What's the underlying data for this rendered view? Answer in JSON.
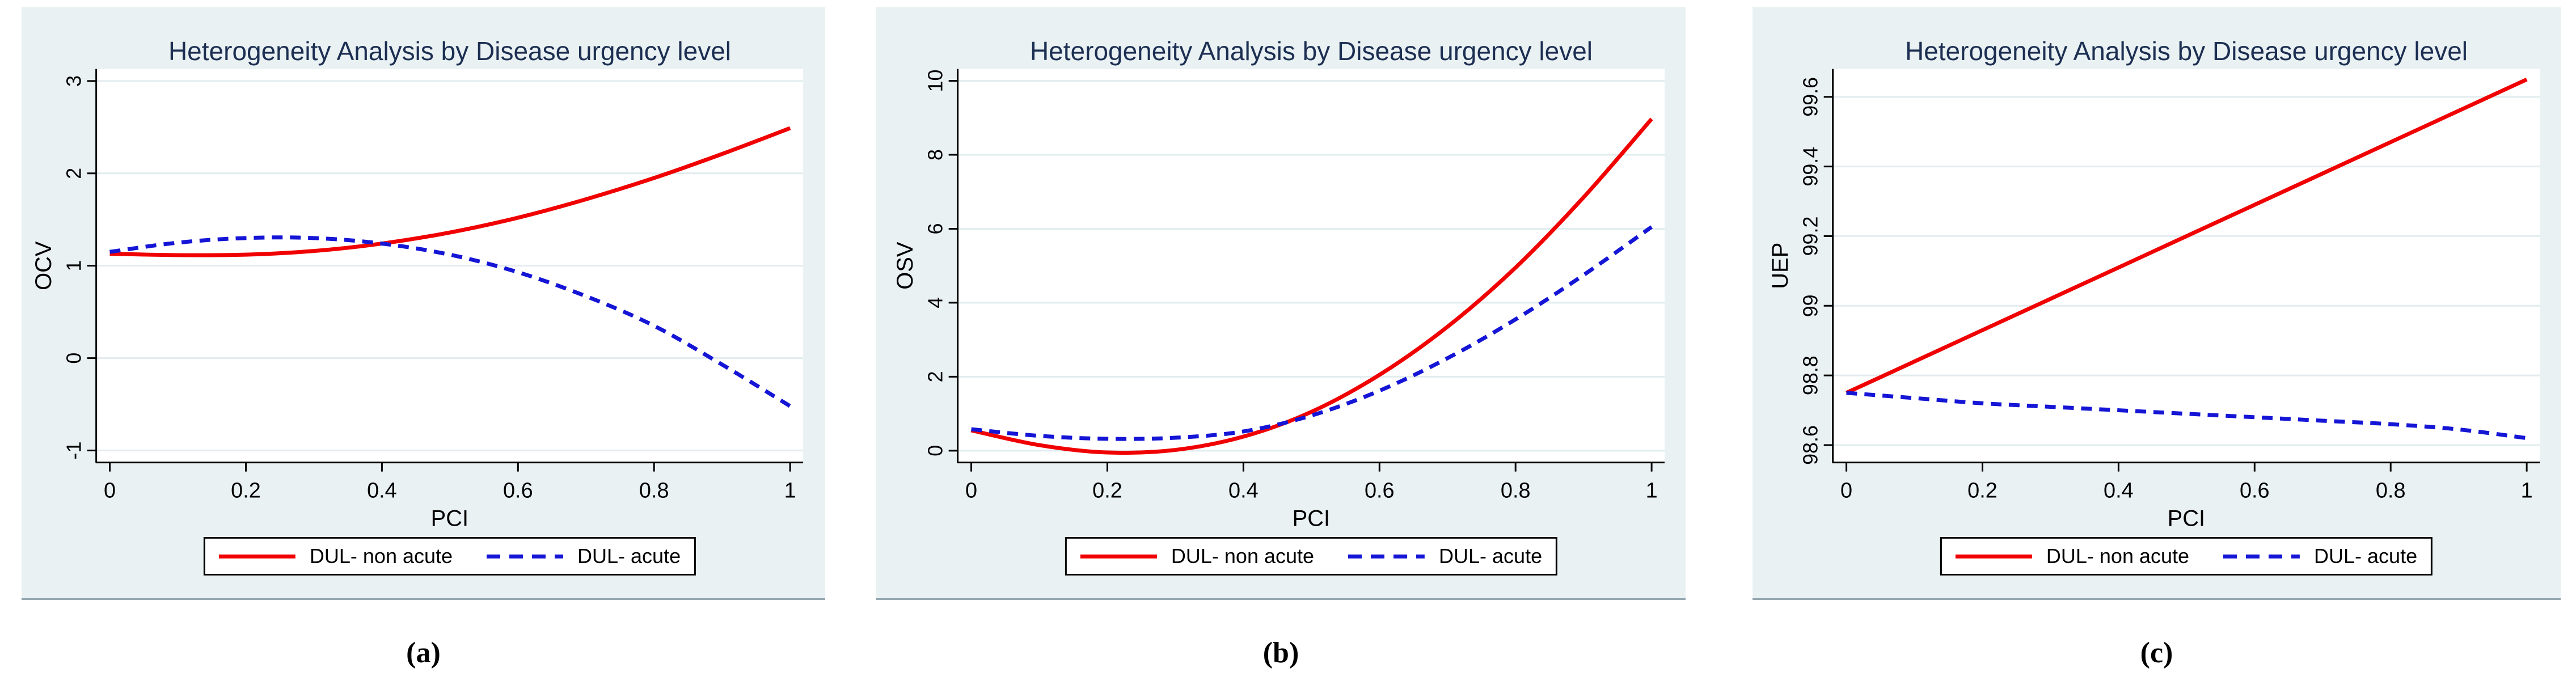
{
  "colors": {
    "figure_bg": "#eaf1f3",
    "plot_bg": "#ffffff",
    "grid": "#e2ecef",
    "axis": "#000000",
    "title": "#1c2f52",
    "non_acute": "#f00000",
    "acute": "#1515d6"
  },
  "panels": [
    {
      "caption": "(a)"
    },
    {
      "caption": "(b)"
    },
    {
      "caption": "(c)"
    }
  ],
  "chart_data": [
    {
      "type": "line",
      "title": "Heterogeneity Analysis by Disease urgency level",
      "xlabel": "PCI",
      "ylabel": "OCV",
      "x": [
        0,
        0.1,
        0.2,
        0.3,
        0.4,
        0.5,
        0.6,
        0.7,
        0.8,
        0.9,
        1
      ],
      "series": [
        {
          "name": "DUL- non acute",
          "line": "solid",
          "color_key": "non_acute",
          "values": [
            1.13,
            1.115,
            1.12,
            1.16,
            1.24,
            1.36,
            1.52,
            1.72,
            1.95,
            2.21,
            2.49
          ]
        },
        {
          "name": "DUL- acute",
          "line": "dashed",
          "color_key": "acute",
          "values": [
            1.15,
            1.25,
            1.3,
            1.3,
            1.24,
            1.12,
            0.93,
            0.67,
            0.35,
            -0.07,
            -0.52
          ]
        }
      ],
      "x_ticks": {
        "values": [
          0,
          0.2,
          0.4,
          0.6,
          0.8,
          1
        ],
        "labels": [
          "0",
          "0.2",
          "0.4",
          "0.6",
          "0.8",
          "1"
        ]
      },
      "y_ticks": {
        "values": [
          3,
          2,
          1,
          0,
          -1
        ],
        "labels": [
          "3",
          "2",
          "1",
          "0",
          "-1"
        ]
      },
      "xlim": [
        0,
        1
      ],
      "ylim": [
        -1.13,
        3.13
      ],
      "grid": "horizontal",
      "legend_position": "bottom"
    },
    {
      "type": "line",
      "title": "Heterogeneity Analysis by Disease urgency level",
      "xlabel": "PCI",
      "ylabel": "OSV",
      "x": [
        0,
        0.1,
        0.2,
        0.3,
        0.4,
        0.5,
        0.6,
        0.7,
        0.8,
        0.9,
        1
      ],
      "series": [
        {
          "name": "DUL- non acute",
          "line": "solid",
          "color_key": "non_acute",
          "values": [
            0.55,
            0.15,
            -0.05,
            0.02,
            0.38,
            1.05,
            2.05,
            3.35,
            4.95,
            6.85,
            8.97
          ]
        },
        {
          "name": "DUL- acute",
          "line": "dashed",
          "color_key": "acute",
          "values": [
            0.58,
            0.4,
            0.32,
            0.35,
            0.52,
            0.95,
            1.62,
            2.5,
            3.55,
            4.75,
            6.05
          ]
        }
      ],
      "x_ticks": {
        "values": [
          0,
          0.2,
          0.4,
          0.6,
          0.8,
          1
        ],
        "labels": [
          "0",
          "0.2",
          "0.4",
          "0.6",
          "0.8",
          "1"
        ]
      },
      "y_ticks": {
        "values": [
          10,
          8,
          6,
          4,
          2,
          0
        ],
        "labels": [
          "10",
          "8",
          "6",
          "4",
          "2",
          "0"
        ]
      },
      "xlim": [
        0,
        1
      ],
      "ylim": [
        -0.32,
        10.32
      ],
      "grid": "horizontal",
      "legend_position": "bottom"
    },
    {
      "type": "line",
      "title": "Heterogeneity Analysis by Disease urgency level",
      "xlabel": "PCI",
      "ylabel": "UEP",
      "x": [
        0,
        0.1,
        0.2,
        0.3,
        0.4,
        0.5,
        0.6,
        0.7,
        0.8,
        0.9,
        1
      ],
      "series": [
        {
          "name": "DUL- non acute",
          "line": "solid",
          "color_key": "non_acute",
          "values": [
            98.75,
            98.84,
            98.93,
            99.02,
            99.11,
            99.2,
            99.29,
            99.38,
            99.47,
            99.56,
            99.65
          ]
        },
        {
          "name": "DUL- acute",
          "line": "dashed",
          "color_key": "acute",
          "values": [
            98.75,
            98.735,
            98.72,
            98.71,
            98.7,
            98.69,
            98.68,
            98.67,
            98.66,
            98.645,
            98.62
          ]
        }
      ],
      "x_ticks": {
        "values": [
          0,
          0.2,
          0.4,
          0.6,
          0.8,
          1
        ],
        "labels": [
          "0",
          "0.2",
          "0.4",
          "0.6",
          "0.8",
          "1"
        ]
      },
      "y_ticks": {
        "values": [
          99.6,
          99.4,
          99.2,
          99,
          98.8,
          98.6
        ],
        "labels": [
          "99.6",
          "99.4",
          "99.2",
          "99",
          "98.8",
          "98.6"
        ]
      },
      "xlim": [
        0,
        1
      ],
      "ylim": [
        98.55,
        99.68
      ],
      "grid": "horizontal",
      "legend_position": "bottom"
    }
  ]
}
